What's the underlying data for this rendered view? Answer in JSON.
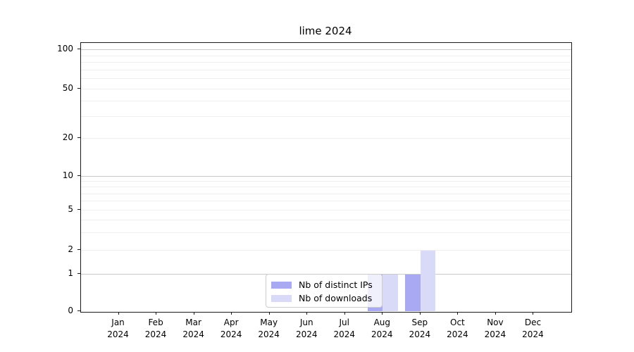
{
  "title": "lime 2024",
  "legend": {
    "items": [
      {
        "label": "Nb of distinct IPs",
        "color": "#a9a9f3"
      },
      {
        "label": "Nb of downloads",
        "color": "#d9d9f8"
      }
    ]
  },
  "y_axis": {
    "tick_labels": [
      "0",
      "1",
      "2",
      "5",
      "10",
      "20",
      "50",
      "100"
    ]
  },
  "x_axis": {
    "months": [
      "Jan",
      "Feb",
      "Mar",
      "Apr",
      "May",
      "Jun",
      "Jul",
      "Aug",
      "Sep",
      "Oct",
      "Nov",
      "Dec"
    ],
    "year": "2024"
  },
  "chart_data": {
    "type": "bar",
    "title": "lime 2024",
    "categories": [
      "Jan 2024",
      "Feb 2024",
      "Mar 2024",
      "Apr 2024",
      "May 2024",
      "Jun 2024",
      "Jul 2024",
      "Aug 2024",
      "Sep 2024",
      "Oct 2024",
      "Nov 2024",
      "Dec 2024"
    ],
    "series": [
      {
        "name": "Nb of distinct IPs",
        "color": "#a9a9f3",
        "values": [
          0,
          0,
          0,
          0,
          0,
          0,
          0,
          1,
          1,
          0,
          0,
          0
        ]
      },
      {
        "name": "Nb of downloads",
        "color": "#d9d9f8",
        "values": [
          0,
          0,
          0,
          0,
          0,
          0,
          0,
          1,
          2,
          0,
          0,
          0
        ]
      }
    ],
    "xlabel": "",
    "ylabel": "",
    "yscale": "symlog",
    "y_ticks": [
      0,
      1,
      2,
      5,
      10,
      20,
      50,
      100
    ],
    "y_major_gridlines": [
      1,
      10,
      100
    ],
    "y_minor_gridlines": [
      2,
      3,
      4,
      5,
      6,
      7,
      8,
      9,
      20,
      30,
      40,
      50,
      60,
      70,
      80,
      90
    ],
    "ylim": [
      0,
      113
    ],
    "grid": "horizontal",
    "legend_position": "lower center",
    "bar_group_width": 0.8
  }
}
